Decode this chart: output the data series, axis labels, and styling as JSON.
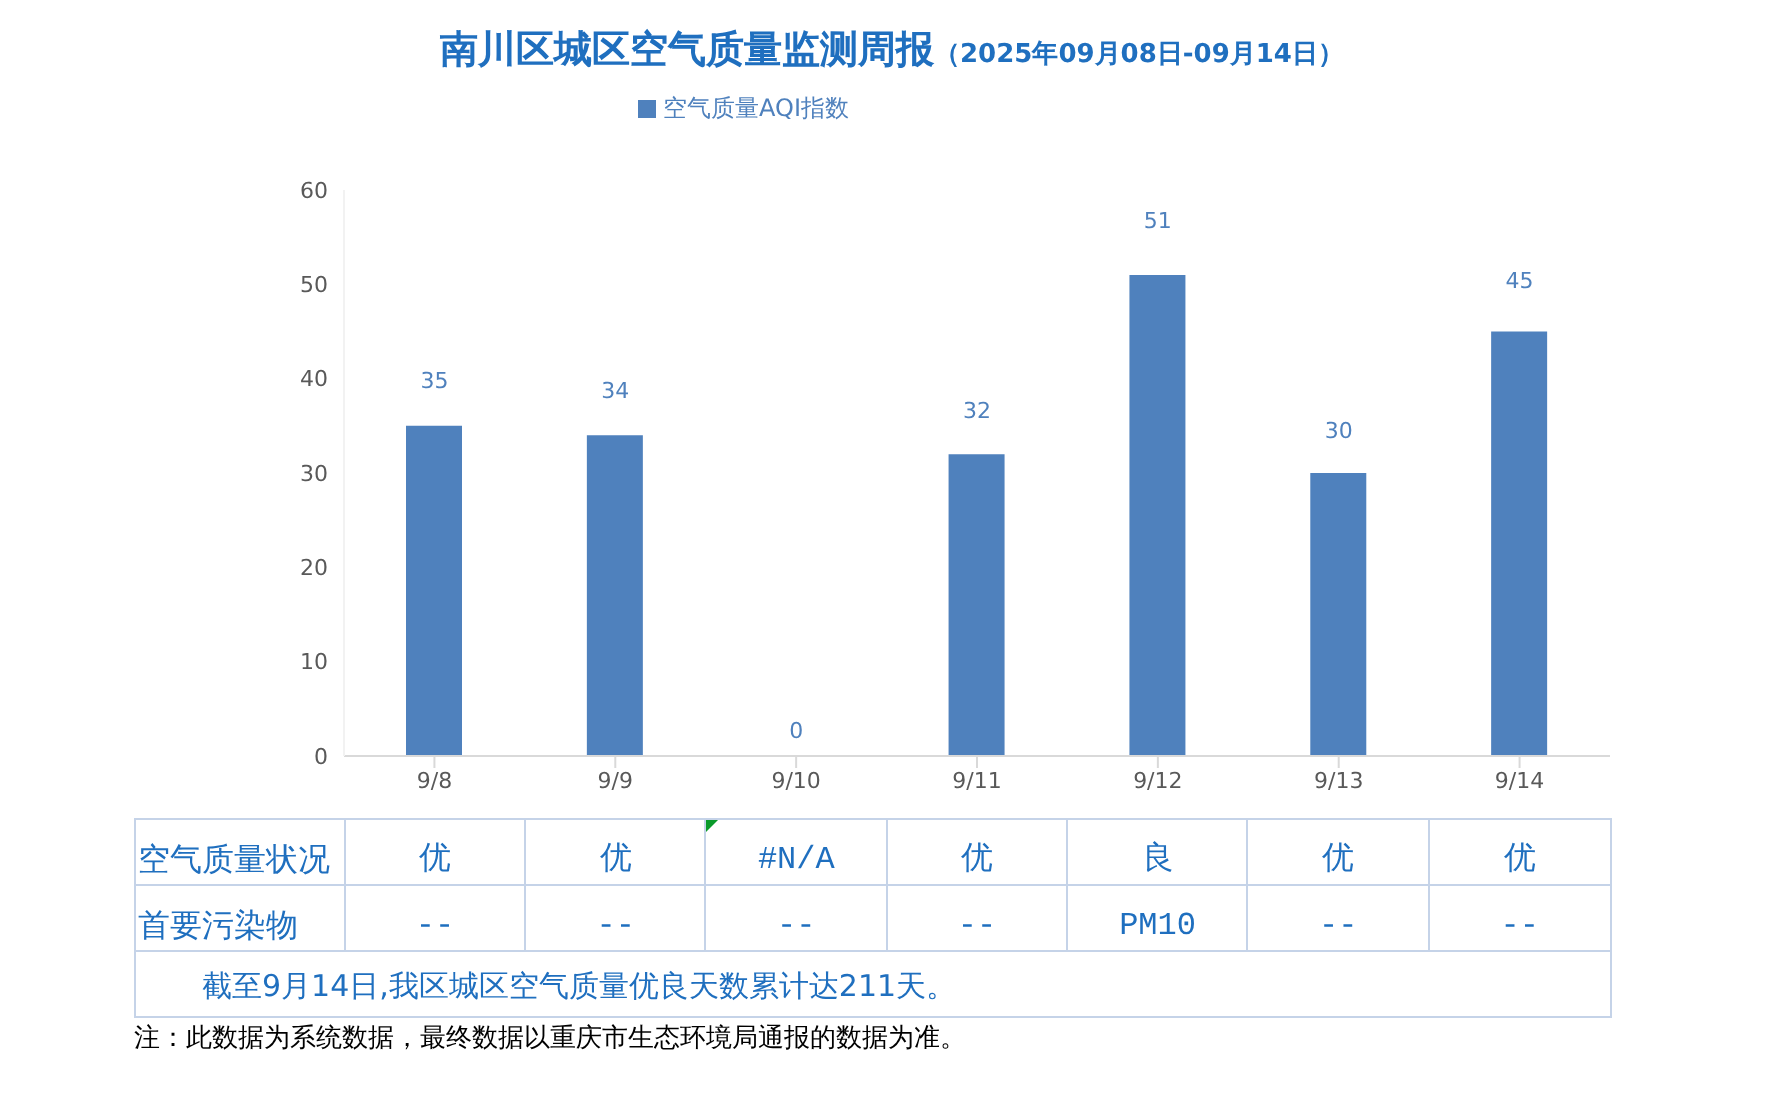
{
  "chart_data": {
    "type": "bar",
    "title": "南川区城区空气质量监测周报",
    "subtitle": "（2025年09月08日-09月14日）",
    "categories": [
      "9/8",
      "9/9",
      "9/10",
      "9/11",
      "9/12",
      "9/13",
      "9/14"
    ],
    "series": [
      {
        "name": "空气质量AQI指数",
        "color": "#4f81bd",
        "values": [
          35,
          34,
          0,
          32,
          51,
          30,
          45
        ]
      }
    ],
    "ylim": [
      0,
      60
    ],
    "yticks": [
      0,
      10,
      20,
      30,
      40,
      50,
      60
    ],
    "grid": false,
    "legend": "top",
    "data_labels": true,
    "annotations": [
      "空气质量状况",
      "优",
      "优",
      "#N/A",
      "优",
      "良",
      "优",
      "优",
      "首要污染物",
      "--",
      "--",
      "--",
      "--",
      "PM10",
      "--",
      "--",
      "截至9月14日,我区城区空气质量优良天数累计达211天。",
      "注：此数据为系统数据，最终数据以重庆市生态环境局通报的数据为准。"
    ]
  }
}
